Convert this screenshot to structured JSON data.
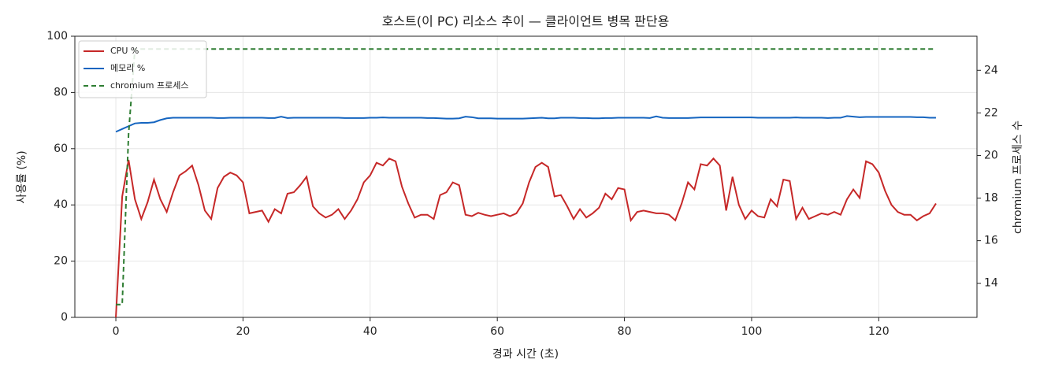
{
  "chart_data": {
    "type": "line",
    "title": "호스트(이 PC) 리소스 추이 — 클라이언트 병목 판단용",
    "x_label": "경과 시간 (초)",
    "y_label": "사용률 (%)",
    "y2_label": "chromium 프로세스 수",
    "x": [
      0,
      1,
      2,
      3,
      4,
      5,
      6,
      7,
      8,
      9,
      10,
      11,
      12,
      13,
      14,
      15,
      16,
      17,
      18,
      19,
      20,
      21,
      22,
      23,
      24,
      25,
      26,
      27,
      28,
      29,
      30,
      31,
      32,
      33,
      34,
      35,
      36,
      37,
      38,
      39,
      40,
      41,
      42,
      43,
      44,
      45,
      46,
      47,
      48,
      49,
      50,
      51,
      52,
      53,
      54,
      55,
      56,
      57,
      58,
      59,
      60,
      61,
      62,
      63,
      64,
      65,
      66,
      67,
      68,
      69,
      70,
      71,
      72,
      73,
      74,
      75,
      76,
      77,
      78,
      79,
      80,
      81,
      82,
      83,
      84,
      85,
      86,
      87,
      88,
      89,
      90,
      91,
      92,
      93,
      94,
      95,
      96,
      97,
      98,
      99,
      100,
      101,
      102,
      103,
      104,
      105,
      106,
      107,
      108,
      109,
      110,
      111,
      112,
      113,
      114,
      115,
      116,
      117,
      118,
      119,
      120,
      121,
      122,
      123,
      124,
      125,
      126,
      127,
      128,
      129
    ],
    "series": [
      {
        "name": "CPU %",
        "color": "#c62828",
        "linestyle": "solid",
        "axis": "y",
        "values": [
          0,
          43,
          56,
          42,
          35,
          41,
          49,
          42,
          37.5,
          44.5,
          50.5,
          52,
          54,
          47,
          38,
          35,
          46,
          50,
          51.5,
          50.5,
          48,
          37,
          37.5,
          38,
          34,
          38.5,
          37,
          44,
          44.5,
          47,
          50,
          39.5,
          37,
          35.5,
          36.5,
          38.5,
          35,
          38,
          42,
          48,
          50.5,
          55,
          54,
          56.5,
          55.5,
          46.5,
          40.5,
          35.5,
          36.5,
          36.5,
          35,
          43.5,
          44.5,
          48,
          47,
          36.5,
          36,
          37.2,
          36.5,
          36,
          36.5,
          37,
          36,
          37,
          40.5,
          48,
          53.5,
          55,
          53.5,
          43,
          43.5,
          39.5,
          35,
          38.5,
          35.5,
          37,
          39,
          44,
          42,
          46,
          45.5,
          34.5,
          37.5,
          38,
          37.5,
          37,
          37,
          36.5,
          34.5,
          40.5,
          48,
          45.5,
          54.5,
          54,
          56.5,
          54,
          38,
          50,
          40,
          35,
          38,
          36,
          35.5,
          42,
          39.5,
          49,
          48.5,
          35,
          39,
          35,
          36,
          37,
          36.5,
          37.5,
          36.5,
          42,
          45.5,
          42.5,
          55.5,
          54.5,
          51.5,
          45,
          40,
          37.5,
          36.5,
          36.5,
          34.5,
          36,
          37,
          40.5
        ]
      },
      {
        "name": "메모리 %",
        "color": "#1565c0",
        "linestyle": "solid",
        "axis": "y",
        "values": [
          66,
          67,
          68,
          69,
          69.2,
          69.2,
          69.4,
          70.2,
          70.8,
          71,
          71,
          71,
          71,
          71,
          71,
          71,
          70.9,
          70.9,
          71,
          71,
          71,
          71,
          71,
          71,
          70.9,
          70.9,
          71.4,
          70.9,
          71,
          71,
          71,
          71,
          71,
          71,
          71,
          71,
          70.9,
          70.9,
          70.9,
          70.9,
          71,
          71,
          71.1,
          71,
          71,
          71,
          71,
          71,
          71,
          70.9,
          70.9,
          70.8,
          70.7,
          70.7,
          70.8,
          71.4,
          71.2,
          70.8,
          70.8,
          70.8,
          70.7,
          70.7,
          70.7,
          70.7,
          70.7,
          70.8,
          70.9,
          71,
          70.8,
          70.8,
          71,
          71,
          71,
          70.9,
          70.9,
          70.8,
          70.8,
          70.9,
          70.9,
          71,
          71,
          71,
          71,
          71,
          70.9,
          71.5,
          71,
          70.9,
          70.9,
          70.9,
          70.9,
          71,
          71.1,
          71.1,
          71.1,
          71.1,
          71.1,
          71.1,
          71.1,
          71.1,
          71.1,
          71,
          71,
          71,
          71,
          71,
          71,
          71.1,
          71,
          71,
          71,
          71,
          70.9,
          71,
          71,
          71.6,
          71.4,
          71.2,
          71.3,
          71.3,
          71.3,
          71.3,
          71.3,
          71.3,
          71.3,
          71.3,
          71.2,
          71.2,
          71,
          71
        ]
      },
      {
        "name": "chromium 프로세스",
        "color": "#2e7d32",
        "linestyle": "dashed",
        "axis": "y2",
        "values": [
          13,
          13,
          21,
          25,
          25,
          25,
          25,
          25,
          25,
          25,
          25,
          25,
          25,
          25,
          25,
          25,
          25,
          25,
          25,
          25,
          25,
          25,
          25,
          25,
          25,
          25,
          25,
          25,
          25,
          25,
          25,
          25,
          25,
          25,
          25,
          25,
          25,
          25,
          25,
          25,
          25,
          25,
          25,
          25,
          25,
          25,
          25,
          25,
          25,
          25,
          25,
          25,
          25,
          25,
          25,
          25,
          25,
          25,
          25,
          25,
          25,
          25,
          25,
          25,
          25,
          25,
          25,
          25,
          25,
          25,
          25,
          25,
          25,
          25,
          25,
          25,
          25,
          25,
          25,
          25,
          25,
          25,
          25,
          25,
          25,
          25,
          25,
          25,
          25,
          25,
          25,
          25,
          25,
          25,
          25,
          25,
          25,
          25,
          25,
          25,
          25,
          25,
          25,
          25,
          25,
          25,
          25,
          25,
          25,
          25,
          25,
          25,
          25,
          25,
          25,
          25,
          25,
          25,
          25,
          25,
          25,
          25,
          25,
          25,
          25,
          25,
          25,
          25,
          25,
          25
        ]
      }
    ],
    "xlim": [
      -6.45,
      135.45
    ],
    "xticks": [
      0,
      20,
      40,
      60,
      80,
      100,
      120
    ],
    "ylim": [
      0,
      100
    ],
    "yticks": [
      0,
      20,
      40,
      60,
      80,
      100
    ],
    "y2lim": [
      12.4,
      25.6
    ],
    "y2ticks": [
      14,
      16,
      18,
      20,
      22,
      24
    ],
    "grid": true,
    "legend": "upper left"
  }
}
